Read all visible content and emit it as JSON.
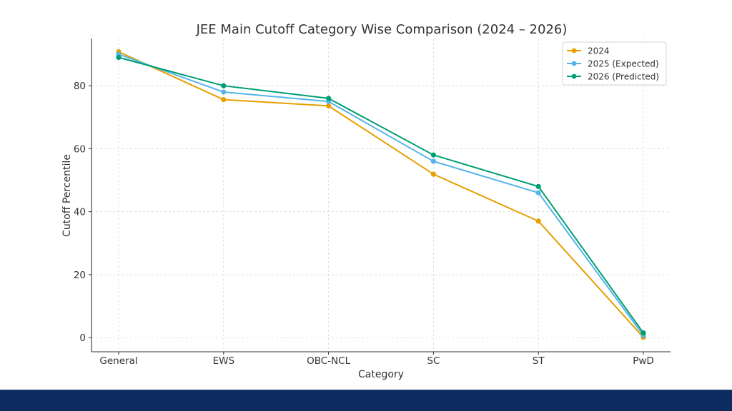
{
  "chart_data": {
    "type": "line",
    "title": "JEE Main Cutoff Category Wise Comparison (2024 – 2026)",
    "xlabel": "Category",
    "ylabel": "Cutoff Percentile",
    "categories": [
      "General",
      "EWS",
      "OBC-NCL",
      "SC",
      "ST",
      "PwD"
    ],
    "yticks": [
      0,
      20,
      40,
      60,
      80
    ],
    "ylim": [
      -4.5,
      95
    ],
    "grid": true,
    "legend_position": "top-right",
    "series": [
      {
        "name": "2024",
        "color": "#E69F00",
        "values": [
          90.8,
          75.6,
          73.6,
          51.9,
          37.0,
          0.1
        ]
      },
      {
        "name": "2025 (Expected)",
        "color": "#56B4E9",
        "values": [
          90.0,
          78.0,
          75.0,
          56.0,
          46.0,
          0.7
        ]
      },
      {
        "name": "2026 (Predicted)",
        "color": "#009E73",
        "values": [
          89.0,
          80.0,
          76.0,
          58.0,
          48.0,
          1.5
        ]
      }
    ]
  },
  "footer": {
    "color": "#0b2b61"
  }
}
